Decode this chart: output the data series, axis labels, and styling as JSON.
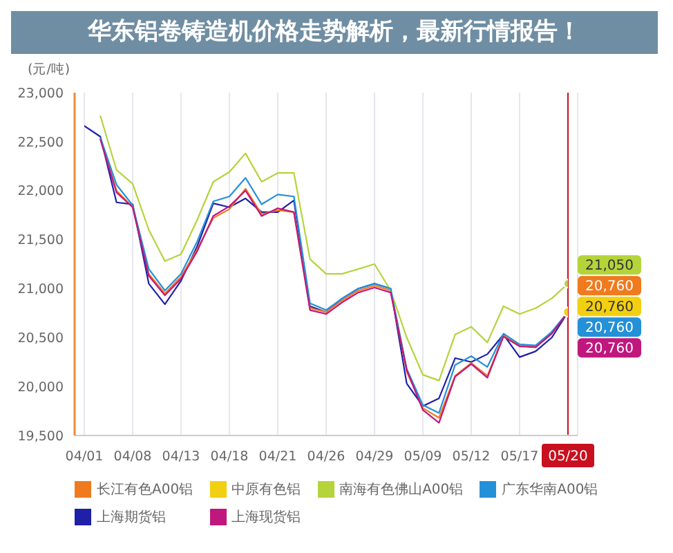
{
  "chart_data": {
    "type": "line",
    "title": "华东铝卷铸造机价格走势解析，最新行情报告！",
    "ylabel": "(元/吨)",
    "categories": [
      "04/01",
      null,
      null,
      "04/08",
      null,
      null,
      "04/13",
      null,
      null,
      "04/18",
      null,
      null,
      "04/21",
      null,
      null,
      "04/26",
      null,
      null,
      "04/29",
      null,
      null,
      "05/09",
      null,
      null,
      "05/12",
      null,
      null,
      "05/17",
      null,
      null,
      "05/20"
    ],
    "series": [
      {
        "name": "长江有色A00铝",
        "color": "#f07a1e",
        "values": [
          null,
          22530,
          22000,
          21830,
          21150,
          20950,
          21120,
          21400,
          21720,
          21810,
          22020,
          21760,
          21800,
          21780,
          20800,
          20760,
          20880,
          20980,
          21030,
          20980,
          20150,
          19780,
          19680,
          20110,
          20240,
          20110,
          20520,
          20420,
          20410,
          20550,
          20760
        ],
        "value_labels": [
          null,
          null,
          null,
          null,
          null,
          null,
          null,
          null,
          null,
          null,
          null,
          null,
          null,
          null,
          null,
          null,
          null,
          null,
          null,
          null,
          null,
          null,
          null,
          null,
          null,
          null,
          null,
          null,
          null,
          null,
          "20,760"
        ]
      },
      {
        "name": "中原有色铝",
        "color": "#f2cf10",
        "marker": "circle",
        "values": [
          null,
          null,
          null,
          null,
          null,
          null,
          null,
          null,
          null,
          null,
          null,
          null,
          null,
          null,
          null,
          null,
          null,
          null,
          null,
          null,
          null,
          null,
          null,
          null,
          null,
          null,
          null,
          null,
          null,
          null,
          20760
        ],
        "value_labels": [
          null,
          null,
          null,
          null,
          null,
          null,
          null,
          null,
          null,
          null,
          null,
          null,
          null,
          null,
          null,
          null,
          null,
          null,
          null,
          null,
          null,
          null,
          null,
          null,
          null,
          null,
          null,
          null,
          null,
          null,
          "20,760"
        ]
      },
      {
        "name": "南海有色佛山A00铝",
        "color": "#b4d43a",
        "values": [
          null,
          22760,
          22210,
          22070,
          21600,
          21280,
          21350,
          21700,
          22090,
          22190,
          22380,
          22090,
          22180,
          22180,
          21300,
          21150,
          21150,
          21200,
          21250,
          20980,
          20500,
          20120,
          20060,
          20530,
          20610,
          20450,
          20820,
          20740,
          20800,
          20900,
          21050
        ],
        "value_labels": [
          null,
          null,
          null,
          null,
          null,
          null,
          null,
          null,
          null,
          null,
          null,
          null,
          null,
          null,
          null,
          null,
          null,
          null,
          null,
          null,
          null,
          null,
          null,
          null,
          null,
          null,
          null,
          null,
          null,
          null,
          "21,050"
        ]
      },
      {
        "name": "广东华南A00铝",
        "color": "#2490d8",
        "values": [
          null,
          22540,
          22060,
          21850,
          21200,
          20980,
          21150,
          21480,
          21890,
          21940,
          22130,
          21860,
          21960,
          21940,
          20850,
          20780,
          20900,
          21000,
          21050,
          21000,
          20180,
          19810,
          19730,
          20220,
          20310,
          20200,
          20540,
          20430,
          20420,
          20560,
          20760
        ],
        "value_labels": [
          null,
          null,
          null,
          null,
          null,
          null,
          null,
          null,
          null,
          null,
          null,
          null,
          null,
          null,
          null,
          null,
          null,
          null,
          null,
          null,
          null,
          null,
          null,
          null,
          null,
          null,
          null,
          null,
          null,
          null,
          "20,760"
        ]
      },
      {
        "name": "上海期货铝",
        "color": "#1f1fa8",
        "values": [
          22660,
          22550,
          21880,
          21860,
          21050,
          20840,
          21080,
          21430,
          21870,
          21830,
          21920,
          21780,
          21780,
          21900,
          20820,
          20760,
          20900,
          21000,
          21050,
          21000,
          20030,
          19800,
          19880,
          20290,
          20250,
          20330,
          20530,
          20300,
          20360,
          20500,
          20760
        ]
      },
      {
        "name": "上海现货铝",
        "color": "#c0177e",
        "values": [
          null,
          22520,
          21980,
          21830,
          21130,
          20930,
          21100,
          21380,
          21740,
          21840,
          22000,
          21740,
          21820,
          21780,
          20780,
          20740,
          20860,
          20960,
          21010,
          20960,
          20170,
          19760,
          19630,
          20100,
          20230,
          20090,
          20510,
          20410,
          20400,
          20540,
          20760
        ],
        "value_labels": [
          null,
          null,
          null,
          null,
          null,
          null,
          null,
          null,
          null,
          null,
          null,
          null,
          null,
          null,
          null,
          null,
          null,
          null,
          null,
          null,
          null,
          null,
          null,
          null,
          null,
          null,
          null,
          null,
          null,
          null,
          "20,760"
        ]
      }
    ],
    "ylim": [
      19500,
      23000
    ],
    "yticks": [
      {
        "value": 19500,
        "label": "19,500"
      },
      {
        "value": 20000,
        "label": "20,000"
      },
      {
        "value": 20500,
        "label": "20,500"
      },
      {
        "value": 21000,
        "label": "21,000"
      },
      {
        "value": 21500,
        "label": "21,500"
      },
      {
        "value": 22000,
        "label": "22,000"
      },
      {
        "value": 22500,
        "label": "22,500"
      },
      {
        "value": 23000,
        "label": "23,000"
      }
    ],
    "grid": "x",
    "legend": "bottom",
    "ref_lines": [
      {
        "axis": "x",
        "value": "05/20",
        "color": "#c8101e"
      }
    ]
  }
}
